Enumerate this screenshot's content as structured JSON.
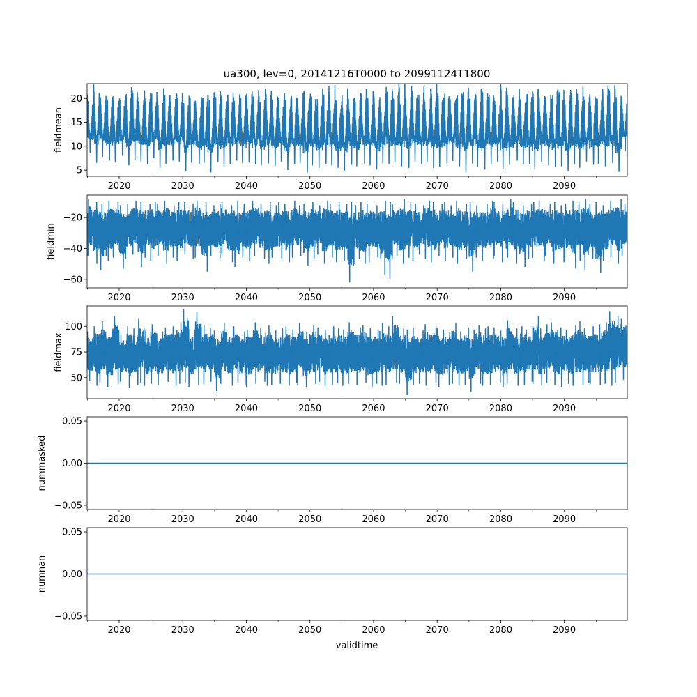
{
  "chart_data": {
    "type": "line",
    "title": "ua300, lev=0, 20141216T0000 to 20991124T1800",
    "xlabel": "validtime",
    "xlim": [
      2014.96,
      2099.9
    ],
    "xticks": [
      2020,
      2030,
      2040,
      2050,
      2060,
      2070,
      2080,
      2090
    ],
    "xtick_labels": [
      "2020",
      "2030",
      "2040",
      "2050",
      "2060",
      "2070",
      "2080",
      "2090"
    ],
    "minor_xticks": [
      2015,
      2025,
      2035,
      2045,
      2055,
      2065,
      2075,
      2085,
      2095
    ],
    "color": "#1f77b4",
    "years_start": 2015,
    "panels": [
      {
        "ylabel": "fieldmean",
        "ylim": [
          3.7,
          23.1
        ],
        "yticks": [
          5,
          10,
          15,
          20
        ],
        "ytick_labels": [
          "5",
          "10",
          "15",
          "20"
        ],
        "style": "seasonal",
        "yearly_max": [
          19.5,
          21.3,
          20.2,
          19.8,
          20.5,
          19.6,
          20.9,
          21.2,
          19.4,
          20.1,
          21.0,
          19.9,
          20.6,
          19.3,
          21.1,
          19.0,
          20.2,
          18.8,
          20.0,
          19.7,
          20.3,
          19.9,
          20.8,
          19.5,
          20.1,
          21.0,
          20.4,
          19.2,
          20.9,
          19.8,
          20.2,
          19.6,
          20.5,
          19.7,
          21.2,
          20.4,
          19.9,
          20.8,
          21.0,
          19.5,
          20.6,
          20.0,
          19.4,
          21.2,
          20.1,
          19.8,
          20.3,
          21.4,
          19.9,
          22.3,
          20.0,
          21.0,
          20.8,
          19.6,
          22.0,
          20.5,
          21.2,
          19.8,
          20.6,
          21.3,
          19.9,
          20.4,
          21.3,
          20.7,
          19.6,
          21.5,
          20.0,
          20.6,
          19.8,
          20.9,
          21.0,
          20.2,
          19.9,
          20.6,
          21.3,
          19.8,
          20.5,
          21.0,
          19.7,
          20.2,
          19.9,
          21.9,
          21.4,
          20.3,
          19.6
        ],
        "yearly_min": [
          8.5,
          6.5,
          7.8,
          7.0,
          6.6,
          8.0,
          6.0,
          7.2,
          6.8,
          6.2,
          7.5,
          5.4,
          6.3,
          7.0,
          6.8,
          4.8,
          6.5,
          6.3,
          6.5,
          4.5,
          6.7,
          5.8,
          6.2,
          7.0,
          6.5,
          6.6,
          6.2,
          6.0,
          6.4,
          5.9,
          6.8,
          5.0,
          6.3,
          6.5,
          4.5,
          6.0,
          5.4,
          6.2,
          6.0,
          5.5,
          4.9,
          6.1,
          5.8,
          6.2,
          6.0,
          5.1,
          6.4,
          6.3,
          6.6,
          5.8,
          5.5,
          6.8,
          6.3,
          6.6,
          5.4,
          5.7,
          6.2,
          6.9,
          5.8,
          4.6,
          6.4,
          5.6,
          5.1,
          6.3,
          6.8,
          5.3,
          6.1,
          7.0,
          6.3,
          6.2,
          5.2,
          6.6,
          6.0,
          5.6,
          5.8,
          4.8,
          6.2,
          5.5,
          6.8,
          6.1,
          6.3,
          5.8,
          6.5,
          4.6,
          9.0
        ]
      },
      {
        "ylabel": "fieldmin",
        "ylim": [
          -65.5,
          -5.5
        ],
        "yticks": [
          -60,
          -40,
          -20
        ],
        "ytick_labels": [
          "−60",
          "−40",
          "−20"
        ],
        "style": "dense",
        "yearly_max": [
          -8,
          -10,
          -11,
          -9,
          -10,
          -12,
          -11,
          -9,
          -10,
          -11,
          -10,
          -11,
          -9,
          -12,
          -10,
          -10,
          -11,
          -9,
          -10,
          -12,
          -11,
          -10,
          -12,
          -9,
          -11,
          -10,
          -9,
          -11,
          -10,
          -12,
          -10,
          -11,
          -9,
          -12,
          -11,
          -10,
          -12,
          -9,
          -11,
          -10,
          -11,
          -10,
          -12,
          -10,
          -11,
          -12,
          -9,
          -10,
          -11,
          -8,
          -10,
          -11,
          -12,
          -9,
          -10,
          -11,
          -10,
          -12,
          -9,
          -11,
          -10,
          -12,
          -11,
          -9,
          -10,
          -11,
          -8,
          -10,
          -12,
          -11,
          -10,
          -9,
          -11,
          -10,
          -12,
          -11,
          -9,
          -10,
          -8,
          -11,
          -10,
          -12,
          -9,
          -8,
          -11
        ],
        "yearly_min": [
          -45,
          -50,
          -54,
          -48,
          -46,
          -53,
          -47,
          -44,
          -52,
          -46,
          -48,
          -45,
          -50,
          -46,
          -48,
          -44,
          -47,
          -46,
          -55,
          -45,
          -47,
          -44,
          -49,
          -52,
          -46,
          -48,
          -45,
          -47,
          -50,
          -46,
          -47,
          -49,
          -46,
          -45,
          -51,
          -47,
          -44,
          -50,
          -46,
          -49,
          -48,
          -62,
          -47,
          -50,
          -49,
          -46,
          -57,
          -60,
          -45,
          -50,
          -46,
          -48,
          -44,
          -47,
          -49,
          -45,
          -48,
          -46,
          -50,
          -47,
          -55,
          -46,
          -48,
          -47,
          -45,
          -49,
          -46,
          -50,
          -52,
          -47,
          -46,
          -48,
          -45,
          -50,
          -49,
          -47,
          -53,
          -48,
          -54,
          -47,
          -56,
          -48,
          -46,
          -50,
          -45
        ]
      },
      {
        "ylabel": "fieldmax",
        "ylim": [
          29.5,
          119.9
        ],
        "yticks": [
          50,
          75,
          100
        ],
        "ytick_labels": [
          "50",
          "75",
          "100"
        ],
        "style": "dense",
        "yearly_max": [
          95,
          100,
          105,
          97,
          110,
          92,
          100,
          98,
          108,
          96,
          102,
          95,
          99,
          100,
          104,
          117,
          97,
          114,
          101,
          99,
          96,
          103,
          98,
          100,
          95,
          97,
          104,
          99,
          101,
          96,
          98,
          100,
          97,
          103,
          95,
          101,
          99,
          96,
          100,
          98,
          97,
          104,
          99,
          101,
          98,
          96,
          103,
          100,
          110,
          98,
          97,
          99,
          96,
          102,
          100,
          98,
          97,
          103,
          95,
          99,
          97,
          101,
          98,
          100,
          99,
          96,
          106,
          98,
          100,
          97,
          110,
          98,
          102,
          104,
          99,
          97,
          101,
          105,
          98,
          100,
          102,
          104,
          115,
          110,
          108
        ],
        "yearly_min": [
          47,
          42,
          45,
          41,
          44,
          46,
          40,
          43,
          45,
          42,
          44,
          43,
          46,
          42,
          44,
          45,
          41,
          43,
          44,
          46,
          37,
          44,
          42,
          45,
          43,
          41,
          44,
          46,
          42,
          43,
          44,
          42,
          45,
          43,
          41,
          44,
          46,
          42,
          43,
          45,
          42,
          44,
          43,
          45,
          41,
          44,
          42,
          43,
          45,
          44,
          33,
          43,
          44,
          42,
          45,
          41,
          43,
          44,
          42,
          43,
          36,
          44,
          42,
          43,
          45,
          41,
          44,
          42,
          43,
          46,
          44,
          42,
          45,
          43,
          41,
          44,
          42,
          43,
          45,
          44,
          43,
          44,
          42,
          45,
          48
        ]
      },
      {
        "ylabel": "nummasked",
        "ylim": [
          -0.055,
          0.055
        ],
        "yticks": [
          -0.05,
          0.0,
          0.05
        ],
        "ytick_labels": [
          "−0.05",
          "0.00",
          "0.05"
        ],
        "style": "constant",
        "value": 0
      },
      {
        "ylabel": "numnan",
        "ylim": [
          -0.055,
          0.055
        ],
        "yticks": [
          -0.05,
          0.0,
          0.05
        ],
        "ytick_labels": [
          "−0.05",
          "0.00",
          "0.05"
        ],
        "style": "constant",
        "value": 0
      }
    ]
  }
}
